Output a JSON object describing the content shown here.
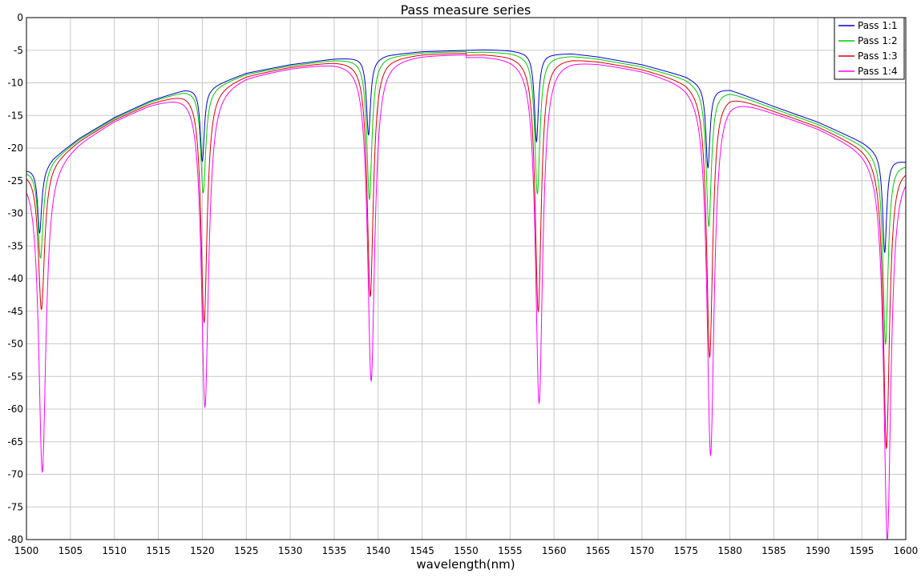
{
  "chart_data": {
    "type": "line",
    "title": "Pass measure series",
    "xlabel": "wavelength(nm)",
    "ylabel": "",
    "xlim": [
      1500,
      1600
    ],
    "ylim": [
      -80,
      0
    ],
    "xticks": [
      1500,
      1505,
      1510,
      1515,
      1520,
      1525,
      1530,
      1535,
      1540,
      1545,
      1550,
      1555,
      1560,
      1565,
      1570,
      1575,
      1580,
      1585,
      1590,
      1595,
      1600
    ],
    "yticks": [
      0,
      -5,
      -10,
      -15,
      -20,
      -25,
      -30,
      -35,
      -40,
      -45,
      -50,
      -55,
      -60,
      -65,
      -70,
      -75,
      -80
    ],
    "grid": true,
    "legend_position": "top-right",
    "envelope": {
      "x": [
        1500,
        1502,
        1503,
        1506,
        1510,
        1514,
        1518,
        1520,
        1521,
        1525,
        1530,
        1535,
        1538.5,
        1539.5,
        1541,
        1545,
        1550,
        1552,
        1555,
        1557.5,
        1558.5,
        1562,
        1565,
        1570,
        1575,
        1577.4,
        1578.2,
        1580,
        1585,
        1590,
        1595,
        1597.6,
        1598.4,
        1600
      ],
      "y": [
        -23.2,
        -22.8,
        -21.5,
        -18.5,
        -15.3,
        -12.8,
        -11.0,
        -10.6,
        -10.5,
        -8.5,
        -7.2,
        -6.3,
        -6.0,
        -6.2,
        -5.7,
        -5.2,
        -5.0,
        -4.9,
        -5.0,
        -5.3,
        -5.5,
        -5.5,
        -6.0,
        -7.2,
        -9.0,
        -10.5,
        -10.8,
        -11.0,
        -13.6,
        -16.0,
        -19.0,
        -21.0,
        -21.5,
        -22.0
      ]
    },
    "dips": [
      {
        "center": 1501.5,
        "depths": [
          -33,
          -37,
          -45,
          -70
        ]
      },
      {
        "center": 1520.0,
        "depths": [
          -22,
          -27,
          -47,
          -60
        ]
      },
      {
        "center": 1538.9,
        "depths": [
          -18,
          -28,
          -43,
          -56
        ]
      },
      {
        "center": 1558.0,
        "depths": [
          -19,
          -27,
          -45,
          -59
        ]
      },
      {
        "center": 1577.5,
        "depths": [
          -23,
          -32,
          -52,
          -67
        ]
      },
      {
        "center": 1597.6,
        "depths": [
          -36,
          -50,
          -66,
          -80
        ]
      }
    ],
    "series": [
      {
        "name": "Pass 1:1",
        "color": "#0000cc",
        "offset": 0.0,
        "shift": 0.0
      },
      {
        "name": "Pass 1:2",
        "color": "#00cc00",
        "offset": -0.3,
        "shift": 0.1
      },
      {
        "name": "Pass 1:3",
        "color": "#dd0000",
        "offset": -0.6,
        "shift": 0.2
      },
      {
        "name": "Pass 1:4",
        "color": "#ff00ff",
        "offset": -0.8,
        "shift": 0.3
      }
    ]
  }
}
